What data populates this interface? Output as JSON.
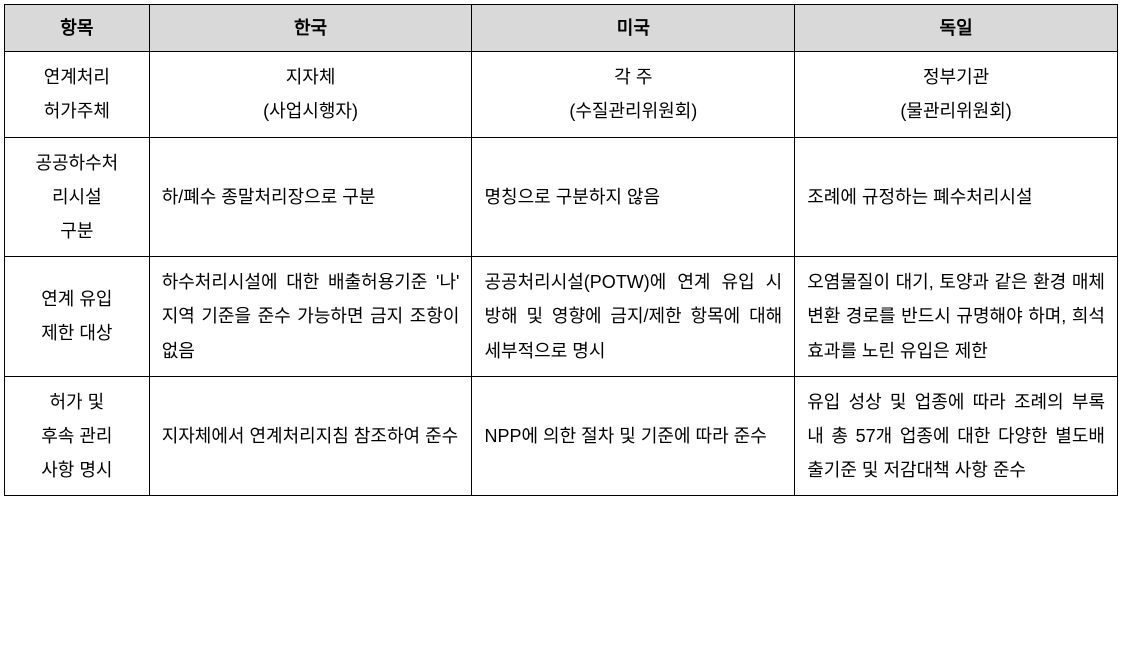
{
  "table": {
    "headers": {
      "item": "항목",
      "korea": "한국",
      "usa": "미국",
      "germany": "독일"
    },
    "rows": [
      {
        "header_line1": "연계처리",
        "header_line2": "허가주체",
        "korea_line1": "지자체",
        "korea_line2": "(사업시행자)",
        "usa_line1": "각 주",
        "usa_line2": "(수질관리위원회)",
        "germany_line1": "정부기관",
        "germany_line2": "(물관리위원회)"
      },
      {
        "header_line1": "공공하수처",
        "header_line2": "리시설",
        "header_line3": "구분",
        "korea": "하/폐수 종말처리장으로 구분",
        "usa": "명칭으로 구분하지 않음",
        "germany": "조례에 규정하는 폐수처리시설"
      },
      {
        "header_line1": "연계 유입",
        "header_line2": "제한 대상",
        "korea": "하수처리시설에 대한 배출허용기준 '나' 지역 기준을 준수 가능하면 금지 조항이 없음",
        "usa": "공공처리시설(POTW)에 연계 유입 시 방해 및 영향에 금지/제한 항목에 대해 세부적으로 명시",
        "germany": "오염물질이 대기, 토양과 같은 환경 매체변환 경로를 반드시 규명해야 하며, 희석 효과를 노린 유입은 제한"
      },
      {
        "header_line1": "허가 및",
        "header_line2": "후속 관리",
        "header_line3": "사항 명시",
        "korea": "지자체에서 연계처리지침 참조하여 준수",
        "usa": "NPP에 의한 절차 및 기준에 따라 준수",
        "germany": "유입 성상 및 업종에 따라 조례의 부록 내 총 57개 업종에 대한 다양한 별도배출기준 및 저감대책 사항 준수"
      }
    ],
    "styling": {
      "header_bg_color": "#d9d9d9",
      "border_color": "#000000",
      "text_color": "#000000",
      "body_font_size": 18,
      "header_font_weight": "bold",
      "line_height": 1.9,
      "cell_padding": "8px 12px"
    }
  }
}
